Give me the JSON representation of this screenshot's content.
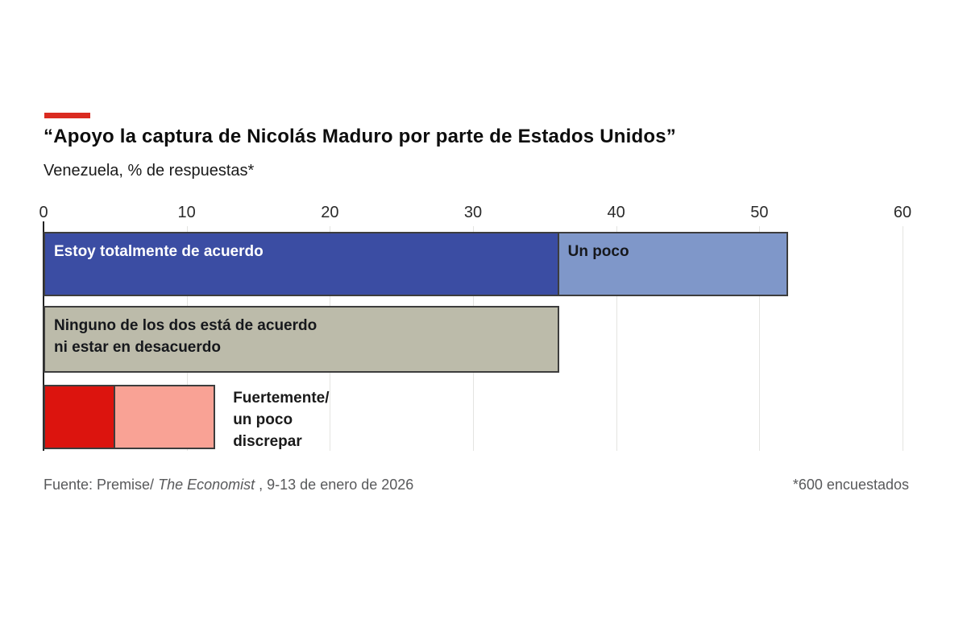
{
  "header": {
    "title": "“Apoyo la captura de Nicolás Maduro por parte de Estados Unidos”",
    "subtitle": "Venezuela, % de respuestas*"
  },
  "chart_data": {
    "type": "bar",
    "orientation": "horizontal",
    "title": "“Apoyo la captura de Nicolás Maduro por parte de Estados Unidos”",
    "subtitle": "Venezuela, % de respuestas*",
    "xlabel": "",
    "ylabel": "",
    "xlim": [
      0,
      60
    ],
    "x_ticks": [
      0,
      10,
      20,
      30,
      40,
      50,
      60
    ],
    "grid": "vertical",
    "rows": [
      {
        "name": "de-acuerdo",
        "segments": [
          {
            "label": "Estoy totalmente de acuerdo",
            "value": 36,
            "color": "#3b4da3",
            "label_color": "#ffffff"
          },
          {
            "label": "Un poco",
            "value": 16,
            "color": "#7f97c9",
            "label_color": "#16181c"
          }
        ]
      },
      {
        "name": "neutral",
        "segments": [
          {
            "label": "Ninguno de los dos está de acuerdo\nni estar en desacuerdo",
            "value": 36,
            "color": "#bcbbaa",
            "label_color": "#16181c"
          }
        ]
      },
      {
        "name": "en-desacuerdo",
        "segments": [
          {
            "label": "",
            "value": 5,
            "color": "#dc140e",
            "label_color": "#ffffff"
          },
          {
            "label": "",
            "value": 7,
            "color": "#f9a295",
            "label_color": "#16181c"
          }
        ],
        "outside_label": "Fuertemente/\nun poco\ndiscrepar"
      }
    ]
  },
  "footer": {
    "source_prefix": "Fuente: Premise/",
    "source_italic": "The Economist",
    "source_suffix": " , 9-13 de enero de 2026",
    "note": "*600 encuestados"
  },
  "colors": {
    "accent_red": "#da2b20",
    "bar_border": "#3d3d3d",
    "gridline": "#e4e4e1",
    "zero_line": "#222222",
    "background": "#ffffff"
  }
}
